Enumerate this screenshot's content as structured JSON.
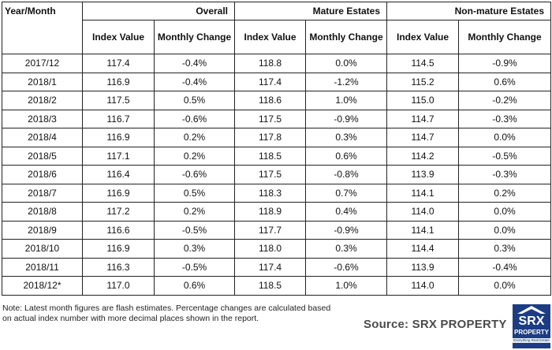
{
  "header": {
    "year_month": "Year/Month",
    "groups": [
      "Overall",
      "Mature Estates",
      "Non-mature Estates"
    ],
    "sub": [
      "Index Value",
      "Monthly Change",
      "Index Value",
      "Monthly Change",
      "Index Value",
      "Monthly Change"
    ]
  },
  "rows": [
    [
      "2017/12",
      "117.4",
      "-0.4%",
      "118.8",
      "0.0%",
      "114.5",
      "-0.9%"
    ],
    [
      "2018/1",
      "116.9",
      "-0.4%",
      "117.4",
      "-1.2%",
      "115.2",
      "0.6%"
    ],
    [
      "2018/2",
      "117.5",
      "0.5%",
      "118.6",
      "1.0%",
      "115.0",
      "-0.2%"
    ],
    [
      "2018/3",
      "116.7",
      "-0.6%",
      "117.5",
      "-0.9%",
      "114.7",
      "-0.3%"
    ],
    [
      "2018/4",
      "116.9",
      "0.2%",
      "117.8",
      "0.3%",
      "114.7",
      "0.0%"
    ],
    [
      "2018/5",
      "117.1",
      "0.2%",
      "118.5",
      "0.6%",
      "114.2",
      "-0.5%"
    ],
    [
      "2018/6",
      "116.4",
      "-0.6%",
      "117.5",
      "-0.8%",
      "113.9",
      "-0.3%"
    ],
    [
      "2018/7",
      "116.9",
      "0.5%",
      "118.3",
      "0.7%",
      "114.1",
      "0.2%"
    ],
    [
      "2018/8",
      "117.2",
      "0.2%",
      "118.9",
      "0.4%",
      "114.0",
      "0.0%"
    ],
    [
      "2018/9",
      "116.6",
      "-0.5%",
      "117.7",
      "-0.9%",
      "114.1",
      "0.0%"
    ],
    [
      "2018/10",
      "116.9",
      "0.3%",
      "118.0",
      "0.3%",
      "114.4",
      "0.3%"
    ],
    [
      "2018/11",
      "116.3",
      "-0.5%",
      "117.4",
      "-0.6%",
      "113.9",
      "-0.4%"
    ],
    [
      "2018/12*",
      "117.0",
      "0.6%",
      "118.5",
      "1.0%",
      "114.0",
      "0.0%"
    ]
  ],
  "notes": {
    "line1": "Note: Latest month figures are flash estimates. Percentage changes are calculated based",
    "line2": "on actual index number with more decimal places shown in the report."
  },
  "source": "Source:  SRX PROPERTY",
  "logo": {
    "mark": "SRX",
    "word": "PROPERTY",
    "tagline": "Everything Real Estate",
    "color": "#1c3d82"
  }
}
